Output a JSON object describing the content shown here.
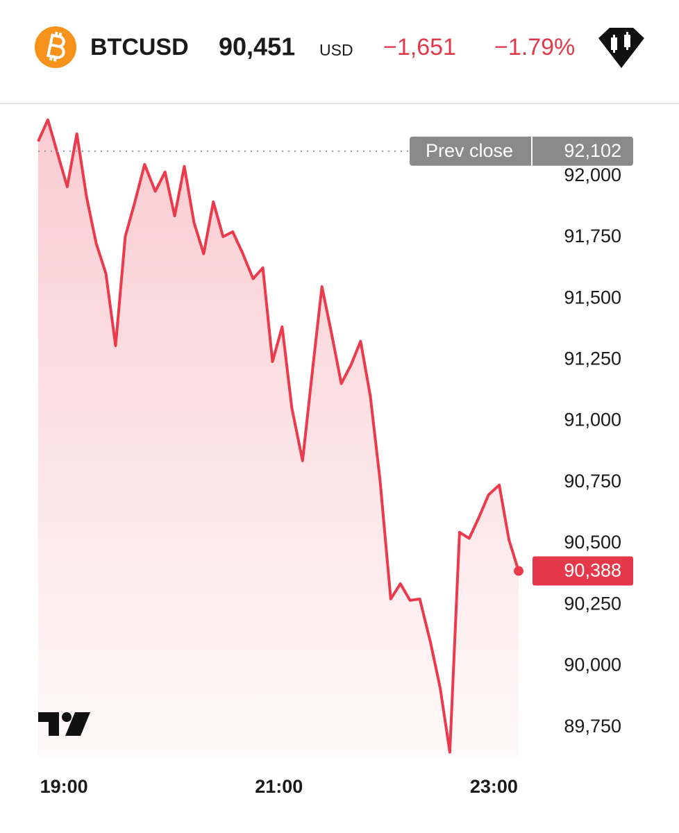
{
  "header": {
    "symbol": "BTCUSD",
    "price": "90,451",
    "currency": "USD",
    "change": "−1,651",
    "change_percent": "−1.79%"
  },
  "chart_data": {
    "type": "line",
    "color": "#ea3a4c",
    "x": [
      18.76,
      18.85,
      19.03,
      19.12,
      19.21,
      19.3,
      19.39,
      19.48,
      19.57,
      19.66,
      19.75,
      19.85,
      19.94,
      20.03,
      20.12,
      20.21,
      20.3,
      20.39,
      20.48,
      20.57,
      20.66,
      20.76,
      20.85,
      20.94,
      21.03,
      21.12,
      21.22,
      21.31,
      21.4,
      21.49,
      21.58,
      21.67,
      21.76,
      21.85,
      21.94,
      22.04,
      22.13,
      22.22,
      22.31,
      22.41,
      22.5,
      22.59,
      22.68,
      22.77,
      22.86,
      22.95,
      23.05,
      23.14,
      23.23
    ],
    "values": [
      92142,
      92230,
      91957,
      92173,
      91915,
      91725,
      91603,
      91308,
      91753,
      91895,
      92048,
      91938,
      92017,
      91838,
      92040,
      91810,
      91683,
      91895,
      91753,
      91773,
      91688,
      91581,
      91626,
      91243,
      91385,
      91053,
      90838,
      91200,
      91549,
      91357,
      91153,
      91229,
      91326,
      91102,
      90762,
      90274,
      90336,
      90268,
      90274,
      90096,
      89911,
      89648,
      90546,
      90521,
      90606,
      90699,
      90739,
      90515,
      90388
    ],
    "xlim": [
      18.76,
      23.23
    ],
    "xticks": [
      {
        "value": 19,
        "label": "19:00"
      },
      {
        "value": 21,
        "label": "21:00"
      },
      {
        "value": 23,
        "label": "23:00"
      }
    ],
    "ylim": [
      89630,
      92280
    ],
    "yticks": [
      {
        "value": 89750,
        "label": "89,750"
      },
      {
        "value": 90000,
        "label": "90,000"
      },
      {
        "value": 90250,
        "label": "90,250"
      },
      {
        "value": 90500,
        "label": "90,500"
      },
      {
        "value": 90750,
        "label": "90,750"
      },
      {
        "value": 91000,
        "label": "91,000"
      },
      {
        "value": 91250,
        "label": "91,250"
      },
      {
        "value": 91500,
        "label": "91,500"
      },
      {
        "value": 91750,
        "label": "91,750"
      },
      {
        "value": 92000,
        "label": "92,000"
      }
    ],
    "reference_line": {
      "name": "Prev close",
      "value": 92102,
      "label": "92,102"
    },
    "last_price": {
      "value": 90388,
      "label": "90,388"
    }
  }
}
